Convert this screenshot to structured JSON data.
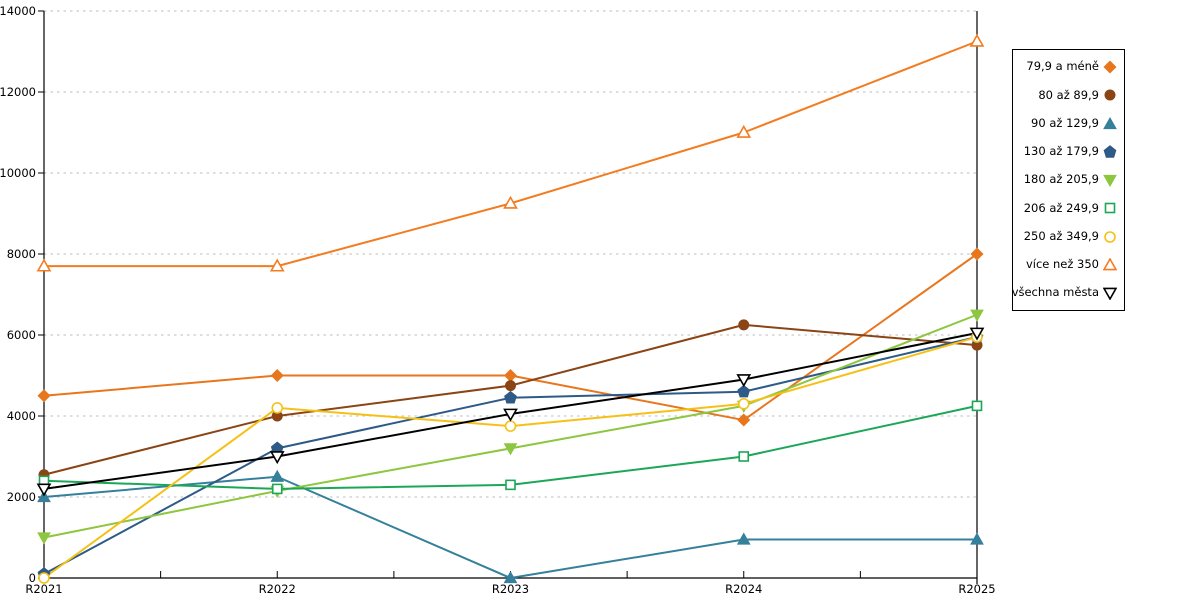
{
  "chart_data": {
    "type": "line",
    "title": "",
    "xlabel": "",
    "ylabel": "",
    "x": [
      "R2021",
      "R2022",
      "R2023",
      "R2024",
      "R2025"
    ],
    "y_ticks": [
      "0",
      "2000",
      "4000",
      "6000",
      "8000",
      "10000",
      "12000",
      "14000"
    ],
    "ylim": [
      0,
      14000
    ],
    "ytick_step": 2000,
    "grid": "horizontal-dashed",
    "grid_color": "#bdbdbd",
    "axis_color": "#000000",
    "legend_position": "right",
    "x_minor_ticks": true,
    "series": [
      {
        "name": "79,9 a méně",
        "color": "#E8761D",
        "marker": "diamond",
        "fill": "solid",
        "values": [
          4500,
          5000,
          5000,
          3900,
          8000
        ]
      },
      {
        "name": "80 až 89,9",
        "color": "#8B4414",
        "marker": "circle",
        "fill": "solid",
        "values": [
          2550,
          4000,
          4750,
          6250,
          5750
        ]
      },
      {
        "name": "90 až 129,9",
        "color": "#35809B",
        "marker": "triangle-up",
        "fill": "solid",
        "values": [
          2000,
          2500,
          0,
          950,
          950
        ]
      },
      {
        "name": "130 až 179,9",
        "color": "#2D5A87",
        "marker": "pentagon",
        "fill": "solid",
        "values": [
          100,
          3200,
          4450,
          4600,
          5950
        ]
      },
      {
        "name": "180 až 205,9",
        "color": "#8DC63F",
        "marker": "triangle-down",
        "fill": "solid",
        "values": [
          1000,
          2150,
          3200,
          4250,
          6500
        ]
      },
      {
        "name": "206 až 249,9",
        "color": "#1CA758",
        "marker": "square",
        "fill": "open",
        "values": [
          2400,
          2200,
          2300,
          3000,
          4250
        ]
      },
      {
        "name": "250 až 349,9",
        "color": "#F5C116",
        "marker": "circle",
        "fill": "open",
        "values": [
          0,
          4200,
          3750,
          4300,
          5950
        ]
      },
      {
        "name": "více než 350",
        "color": "#F47C20",
        "marker": "triangle-up",
        "fill": "open",
        "values": [
          7700,
          7700,
          9250,
          11000,
          13250
        ]
      },
      {
        "name": "všechna města",
        "color": "#000000",
        "marker": "triangle-down",
        "fill": "open",
        "values": [
          2200,
          3000,
          4050,
          4900,
          6050
        ]
      }
    ]
  }
}
